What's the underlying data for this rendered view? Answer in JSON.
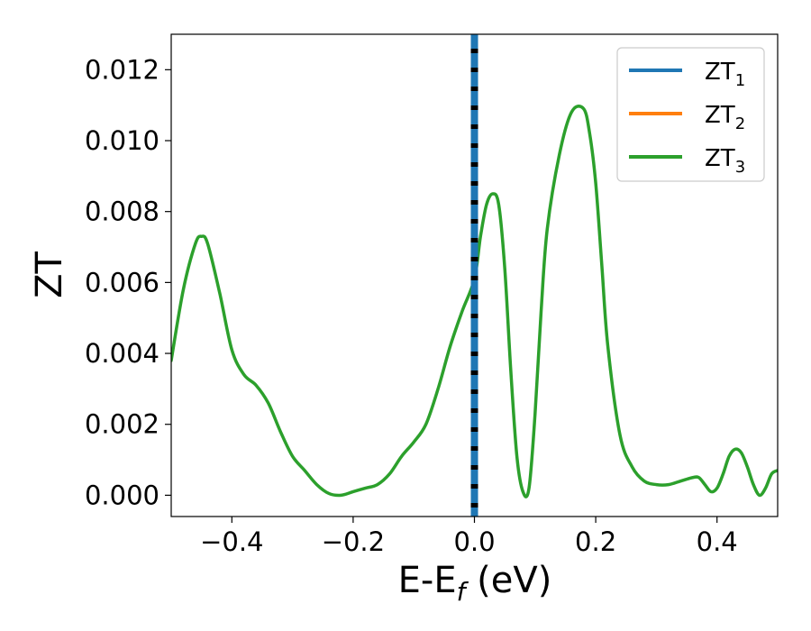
{
  "chart_data": {
    "type": "line",
    "title": "",
    "xlabel": {
      "base": "E-E",
      "sub": "f",
      "suffix": " (eV)"
    },
    "ylabel": "ZT",
    "xlim": [
      -0.5,
      0.5
    ],
    "ylim": [
      -0.0006,
      0.013
    ],
    "grid": false,
    "legend_position": "top-right",
    "x_ticks": [
      -0.4,
      -0.2,
      0.0,
      0.2,
      0.4
    ],
    "x_tick_labels": [
      "−0.4",
      "−0.2",
      "0.0",
      "0.2",
      "0.4"
    ],
    "y_ticks": [
      0.0,
      0.002,
      0.004,
      0.006,
      0.008,
      0.01,
      0.012
    ],
    "y_tick_labels": [
      "0.000",
      "0.002",
      "0.004",
      "0.006",
      "0.008",
      "0.010",
      "0.012"
    ],
    "fermi_line": {
      "x": 0.0,
      "style": "dashed",
      "colors": [
        "#000000",
        "#1f77b4"
      ]
    },
    "series": [
      {
        "name": "ZT",
        "sub": "1",
        "color": "#1f77b4",
        "x": [],
        "y": []
      },
      {
        "name": "ZT",
        "sub": "2",
        "color": "#ff7f0e",
        "x": [],
        "y": []
      },
      {
        "name": "ZT",
        "sub": "3",
        "color": "#2ca02c",
        "x": [
          -0.5,
          -0.48,
          -0.46,
          -0.45,
          -0.44,
          -0.42,
          -0.4,
          -0.38,
          -0.36,
          -0.34,
          -0.32,
          -0.3,
          -0.28,
          -0.26,
          -0.24,
          -0.22,
          -0.2,
          -0.18,
          -0.16,
          -0.14,
          -0.12,
          -0.1,
          -0.08,
          -0.06,
          -0.04,
          -0.02,
          0.0,
          0.01,
          0.02,
          0.03,
          0.04,
          0.05,
          0.06,
          0.07,
          0.08,
          0.09,
          0.1,
          0.11,
          0.12,
          0.14,
          0.16,
          0.18,
          0.19,
          0.2,
          0.21,
          0.22,
          0.24,
          0.26,
          0.28,
          0.3,
          0.32,
          0.34,
          0.36,
          0.37,
          0.38,
          0.39,
          0.4,
          0.41,
          0.42,
          0.43,
          0.44,
          0.45,
          0.46,
          0.47,
          0.48,
          0.49,
          0.5
        ],
        "y": [
          0.0038,
          0.0058,
          0.0071,
          0.0073,
          0.0071,
          0.0057,
          0.0041,
          0.0034,
          0.0031,
          0.0026,
          0.0018,
          0.0011,
          0.0007,
          0.0003,
          5e-05,
          0.0,
          0.0001,
          0.0002,
          0.0003,
          0.0006,
          0.0011,
          0.0015,
          0.002,
          0.003,
          0.0042,
          0.0052,
          0.0061,
          0.0073,
          0.0082,
          0.0085,
          0.0082,
          0.0064,
          0.0035,
          0.0011,
          0.0001,
          0.0002,
          0.0023,
          0.0052,
          0.0075,
          0.0096,
          0.0108,
          0.0109,
          0.0102,
          0.0088,
          0.0065,
          0.0042,
          0.0017,
          0.0008,
          0.0004,
          0.0003,
          0.0003,
          0.0004,
          0.0005,
          0.0005,
          0.0003,
          0.0001,
          0.0002,
          0.0006,
          0.0011,
          0.0013,
          0.0012,
          0.0008,
          0.0003,
          0.0,
          0.0002,
          0.0006,
          0.0007
        ]
      }
    ]
  }
}
